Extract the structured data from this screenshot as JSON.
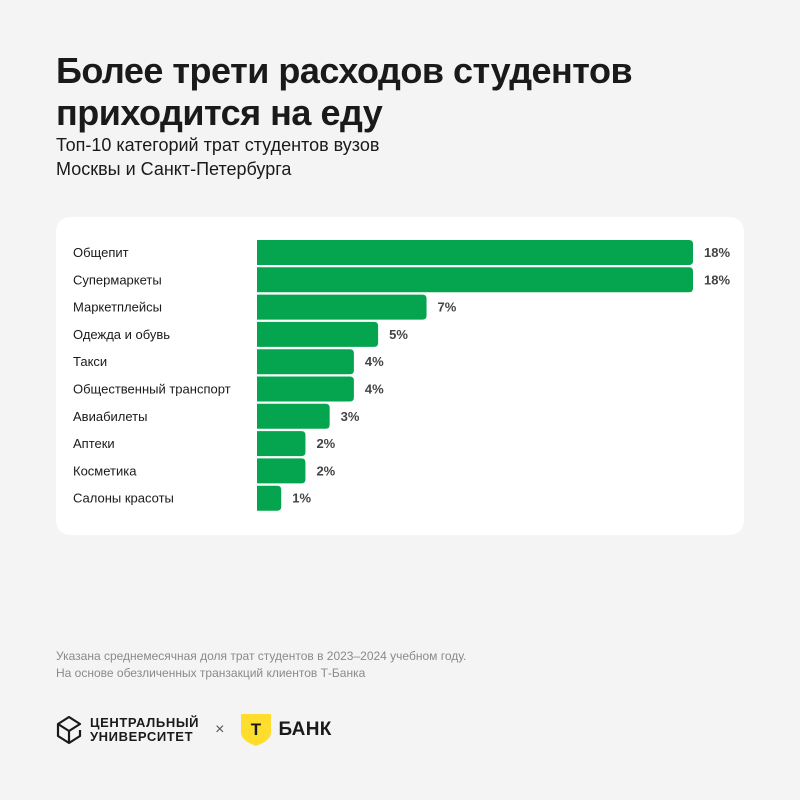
{
  "header": {
    "title_line1": "Более трети расходов студентов",
    "title_line2": "приходится на еду",
    "subtitle_line1": "Топ-10 категорий трат студентов вузов",
    "subtitle_line2": "Москвы и Санкт-Петербурга"
  },
  "chart_data": {
    "type": "bar",
    "orientation": "horizontal",
    "categories": [
      "Общепит",
      "Супермаркеты",
      "Маркетплейсы",
      "Одежда и обувь",
      "Такси",
      "Общественный транспорт",
      "Авиабилеты",
      "Аптеки",
      "Косметика",
      "Салоны красоты"
    ],
    "values": [
      18,
      18,
      7,
      5,
      4,
      4,
      3,
      2,
      2,
      1
    ],
    "value_labels": [
      "18%",
      "18%",
      "7%",
      "5%",
      "4%",
      "4%",
      "3%",
      "2%",
      "2%",
      "1%"
    ],
    "value_unit": "%",
    "bar_color": "#05a54f",
    "grid": false,
    "legend": "none"
  },
  "footnote": {
    "line1": "Указана среднемесячная доля трат студентов в 2023–2024 учебном году.",
    "line2": "На основе обезличенных транзакций клиентов Т-Банка"
  },
  "brands": {
    "cu_line1": "ЦЕНТРАЛЬНЫЙ",
    "cu_line2": "УНИВЕРСИТЕТ",
    "separator": "×",
    "tbank_name": "БАНК",
    "tbank_mark": "T",
    "tbank_color": "#ffdd2d"
  }
}
